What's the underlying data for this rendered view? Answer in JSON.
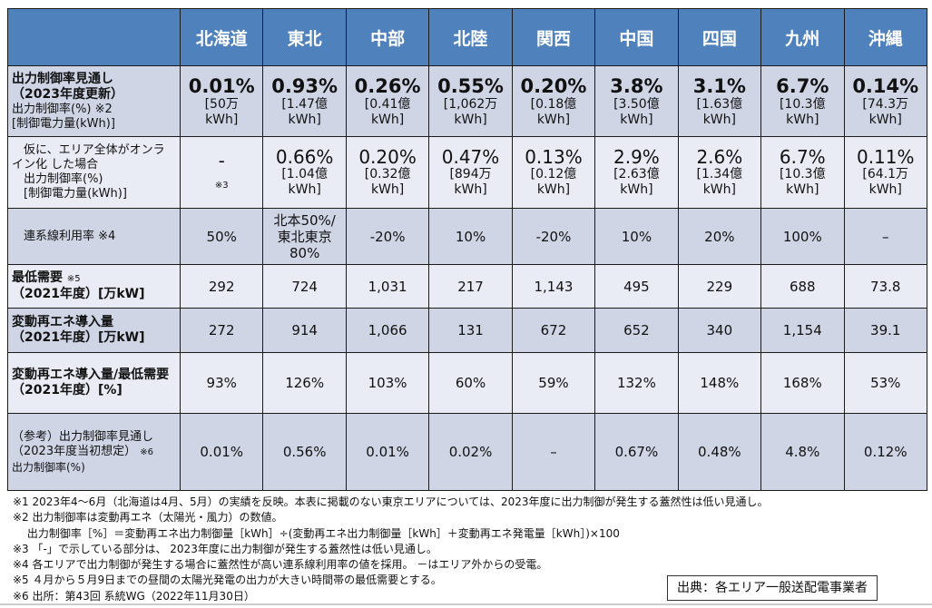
{
  "regions": [
    "北海道",
    "東北",
    "中部",
    "北陸",
    "関西",
    "中国",
    "四国",
    "九州",
    "沖縄"
  ],
  "colors": {
    "header": "#4F81BD",
    "row_dark": "#CFD5E5",
    "row_light": "#E9ECF5"
  },
  "rows": [
    {
      "id": "curtailment-2023-updated",
      "style": "big",
      "label": [
        {
          "t": "出力制御率見通し",
          "b": true
        },
        {
          "t": "（2023年度更新）",
          "b": true
        },
        {
          "t": "出力制御率(%) ※2"
        },
        {
          "t": "[制御電力量(kWh)]"
        }
      ],
      "cells": [
        {
          "main": "0.01%",
          "sub": [
            "[50万",
            "kWh]"
          ]
        },
        {
          "main": "0.93%",
          "sub": [
            "[1.47億",
            "kWh]"
          ]
        },
        {
          "main": "0.26%",
          "sub": [
            "[0.41億",
            "kWh]"
          ]
        },
        {
          "main": "0.55%",
          "sub": [
            "[1,062万",
            "kWh]"
          ]
        },
        {
          "main": "0.20%",
          "sub": [
            "[0.18億",
            "kWh]"
          ]
        },
        {
          "main": "3.8%",
          "sub": [
            "[3.50億",
            "kWh]"
          ]
        },
        {
          "main": "3.1%",
          "sub": [
            "[1.63億",
            "kWh]"
          ]
        },
        {
          "main": "6.7%",
          "sub": [
            "[10.3億",
            "kWh]"
          ]
        },
        {
          "main": "0.14%",
          "sub": [
            "[74.3万",
            "kWh]"
          ]
        }
      ]
    },
    {
      "id": "curtailment-if-online",
      "style": "mid",
      "label": [
        {
          "t": "　仮に、エリア全体がオンライン化 した場合"
        },
        {
          "t": "　出力制御率(%)"
        },
        {
          "t": "　[制御電力量(kWh)]"
        }
      ],
      "cells": [
        {
          "main": "-",
          "note": "※3"
        },
        {
          "main": "0.66%",
          "sub": [
            "[1.04億",
            "kWh]"
          ]
        },
        {
          "main": "0.20%",
          "sub": [
            "[0.32億",
            "kWh]"
          ]
        },
        {
          "main": "0.47%",
          "sub": [
            "[894万",
            "kWh]"
          ]
        },
        {
          "main": "0.13%",
          "sub": [
            "[0.12億",
            "kWh]"
          ]
        },
        {
          "main": "2.9%",
          "sub": [
            "[2.63億",
            "kWh]"
          ]
        },
        {
          "main": "2.6%",
          "sub": [
            "[1.34億",
            "kWh]"
          ]
        },
        {
          "main": "6.7%",
          "sub": [
            "[10.3億",
            "kWh]"
          ]
        },
        {
          "main": "0.11%",
          "sub": [
            "[64.1万",
            "kWh]"
          ]
        }
      ]
    },
    {
      "id": "interconnection-usage",
      "style": "plain",
      "label": [
        {
          "t": "　連系線利用率 ※4"
        }
      ],
      "cells": [
        {
          "main": "50%"
        },
        {
          "main": "北本50%/",
          "sub": [
            "東北東京",
            "80%"
          ]
        },
        {
          "main": "-20%"
        },
        {
          "main": "10%"
        },
        {
          "main": "-20%"
        },
        {
          "main": "10%"
        },
        {
          "main": "20%"
        },
        {
          "main": "100%"
        },
        {
          "main": "–"
        }
      ]
    },
    {
      "id": "minimum-demand",
      "style": "plain",
      "label": [
        {
          "t": "最低需要 ",
          "b": true,
          "n": "※5"
        },
        {
          "t": "（2021年度）[万kW]",
          "b": true
        }
      ],
      "cells": [
        {
          "main": "292"
        },
        {
          "main": "724"
        },
        {
          "main": "1,031"
        },
        {
          "main": "217"
        },
        {
          "main": "1,143"
        },
        {
          "main": "495"
        },
        {
          "main": "229"
        },
        {
          "main": "688"
        },
        {
          "main": "73.8"
        }
      ]
    },
    {
      "id": "vre-installed",
      "style": "plain",
      "label": [
        {
          "t": "変動再エネ導入量",
          "b": true
        },
        {
          "t": "（2021年度）[万kW]",
          "b": true
        }
      ],
      "cells": [
        {
          "main": "272"
        },
        {
          "main": "914"
        },
        {
          "main": "1,066"
        },
        {
          "main": "131"
        },
        {
          "main": "672"
        },
        {
          "main": "652"
        },
        {
          "main": "340"
        },
        {
          "main": "1,154"
        },
        {
          "main": "39.1"
        }
      ]
    },
    {
      "id": "vre-to-min-demand",
      "style": "plain",
      "label": [
        {
          "t": "変動再エネ導入量/最低需要（2021年度）[%]",
          "b": true
        }
      ],
      "cells": [
        {
          "main": "93%"
        },
        {
          "main": "126%"
        },
        {
          "main": "103%"
        },
        {
          "main": "60%"
        },
        {
          "main": "59%"
        },
        {
          "main": "132%"
        },
        {
          "main": "148%"
        },
        {
          "main": "168%"
        },
        {
          "main": "53%"
        }
      ]
    },
    {
      "id": "reference-initial-2023",
      "style": "plain",
      "label": [
        {
          "t": "（参考）出力制御率見通し（2023年度当初想定） ",
          "n": "※6"
        },
        {
          "t": "出力制御率(%)",
          "small": true
        }
      ],
      "cells": [
        {
          "main": "0.01%"
        },
        {
          "main": "0.56%"
        },
        {
          "main": "0.01%"
        },
        {
          "main": "0.02%"
        },
        {
          "main": "–"
        },
        {
          "main": "0.67%"
        },
        {
          "main": "0.48%"
        },
        {
          "main": "4.8%"
        },
        {
          "main": "0.12%"
        }
      ]
    }
  ],
  "footnotes": [
    "※1 2023年4～6月（北海道は4月、5月）の実績を反映。本表に掲載のない東京エリアについては、2023年度に出力制御が発生する蓋然性は低い見通し。",
    "※2 出力制御率は変動再エネ（太陽光・風力）の数値。",
    "　 出力制御率［%］＝変動再エネ出力制御量［kWh］÷(変動再エネ出力制御量［kWh］＋変動再エネ発電量［kWh］)×100",
    "※3 「-」で示している部分は、 2023年度に出力制御が発生する蓋然性は低い見通し。",
    "※4 各エリアで出力制御が発生する場合に蓋然性が高い連系線利用率の値を採用。 －はエリア外からの受電。",
    "※5 ４月から５月9日までの昼間の太陽光発電の出力が大きい時間帯の最低需要とする。",
    "※6 出所：第43回 系統WG（2022年11月30日）"
  ],
  "source": "出典：各エリア一般送配電事業者"
}
